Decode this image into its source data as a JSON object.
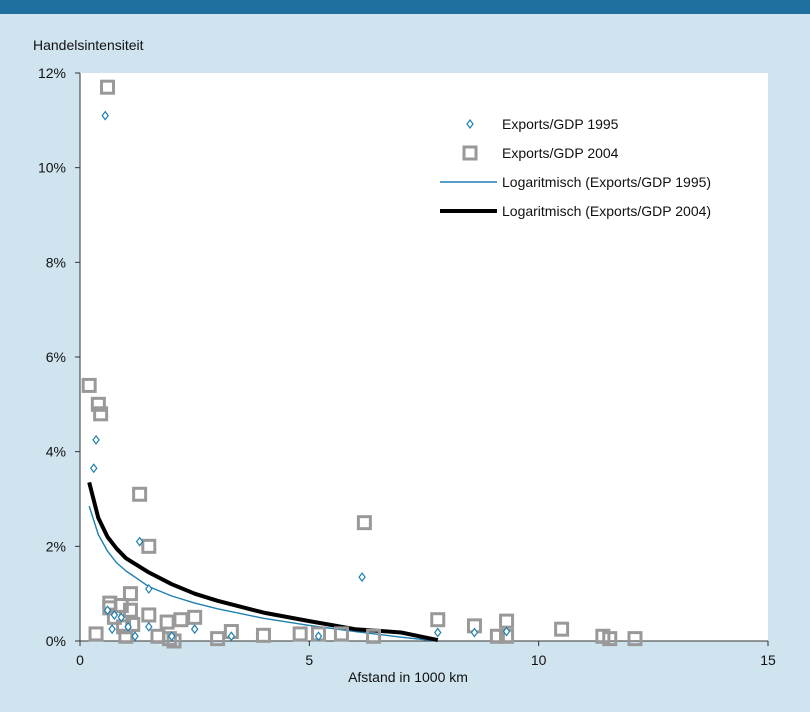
{
  "chart_data": {
    "type": "scatter",
    "title": "",
    "ylabel": "Handelsintensiteit",
    "xlabel": "Afstand in 1000 km",
    "xlim": [
      0,
      15
    ],
    "ylim": [
      0,
      12
    ],
    "x_ticks": [
      "0",
      "5",
      "10",
      "15"
    ],
    "y_ticks": [
      "0%",
      "2%",
      "4%",
      "6%",
      "8%",
      "10%",
      "12%"
    ],
    "grid": "none",
    "legend_position": "top-right",
    "colors": {
      "background": "#cfe4ee",
      "plot_background": "#ffffff",
      "top_bar": "#1f6f9f",
      "series_1995": "#1f7fb0",
      "series_2004": "#999999",
      "trend_2004": "#000000"
    },
    "series": [
      {
        "name": "Exports/GDP 1995",
        "marker": "diamond",
        "points": [
          [
            0.55,
            11.1
          ],
          [
            0.35,
            4.25
          ],
          [
            0.3,
            3.65
          ],
          [
            1.3,
            2.1
          ],
          [
            1.5,
            1.1
          ],
          [
            6.15,
            1.35
          ],
          [
            0.6,
            0.65
          ],
          [
            0.75,
            0.55
          ],
          [
            0.9,
            0.5
          ],
          [
            1.05,
            0.3
          ],
          [
            0.7,
            0.25
          ],
          [
            1.2,
            0.1
          ],
          [
            1.5,
            0.3
          ],
          [
            2.0,
            0.1
          ],
          [
            2.5,
            0.25
          ],
          [
            3.3,
            0.1
          ],
          [
            5.2,
            0.1
          ],
          [
            7.8,
            0.18
          ],
          [
            8.6,
            0.18
          ],
          [
            9.3,
            0.2
          ]
        ]
      },
      {
        "name": "Exports/GDP 2004",
        "marker": "square",
        "points": [
          [
            0.6,
            11.7
          ],
          [
            0.2,
            5.4
          ],
          [
            0.4,
            5.0
          ],
          [
            0.45,
            4.8
          ],
          [
            1.3,
            3.1
          ],
          [
            1.5,
            2.0
          ],
          [
            6.2,
            2.5
          ],
          [
            1.1,
            1.0
          ],
          [
            0.65,
            0.8
          ],
          [
            0.9,
            0.75
          ],
          [
            0.65,
            0.7
          ],
          [
            1.1,
            0.65
          ],
          [
            1.5,
            0.55
          ],
          [
            0.75,
            0.5
          ],
          [
            2.5,
            0.5
          ],
          [
            1.9,
            0.4
          ],
          [
            2.2,
            0.45
          ],
          [
            1.15,
            0.35
          ],
          [
            0.95,
            0.3
          ],
          [
            3.3,
            0.2
          ],
          [
            0.35,
            0.15
          ],
          [
            1.0,
            0.1
          ],
          [
            1.7,
            0.1
          ],
          [
            1.95,
            0.05
          ],
          [
            2.05,
            0.0
          ],
          [
            3.0,
            0.05
          ],
          [
            4.0,
            0.12
          ],
          [
            4.8,
            0.15
          ],
          [
            5.2,
            0.15
          ],
          [
            5.7,
            0.15
          ],
          [
            6.4,
            0.1
          ],
          [
            7.8,
            0.45
          ],
          [
            8.6,
            0.32
          ],
          [
            9.3,
            0.42
          ],
          [
            9.1,
            0.1
          ],
          [
            9.3,
            0.1
          ],
          [
            10.5,
            0.25
          ],
          [
            11.4,
            0.1
          ],
          [
            11.55,
            0.05
          ],
          [
            12.1,
            0.05
          ]
        ]
      },
      {
        "name": "Logaritmisch (Exports/GDP 1995)",
        "type": "line",
        "x": [
          0.2,
          0.4,
          0.6,
          0.8,
          1.0,
          1.5,
          2.0,
          2.5,
          3.0,
          4.0,
          5.0,
          6.0,
          7.0,
          7.8
        ],
        "y": [
          2.85,
          2.25,
          1.9,
          1.65,
          1.48,
          1.15,
          0.95,
          0.8,
          0.68,
          0.48,
          0.33,
          0.2,
          0.08,
          0.0
        ]
      },
      {
        "name": "Logaritmisch (Exports/GDP 2004)",
        "type": "line",
        "x": [
          0.2,
          0.4,
          0.6,
          0.8,
          1.0,
          1.5,
          2.0,
          2.5,
          3.0,
          4.0,
          5.0,
          6.0,
          7.0,
          7.8
        ],
        "y": [
          3.35,
          2.6,
          2.2,
          1.95,
          1.75,
          1.45,
          1.2,
          1.0,
          0.85,
          0.6,
          0.42,
          0.25,
          0.18,
          0.02
        ]
      }
    ],
    "legend": [
      "Exports/GDP 1995",
      "Exports/GDP 2004",
      "Logaritmisch (Exports/GDP 1995)",
      "Logaritmisch (Exports/GDP 2004)"
    ]
  }
}
